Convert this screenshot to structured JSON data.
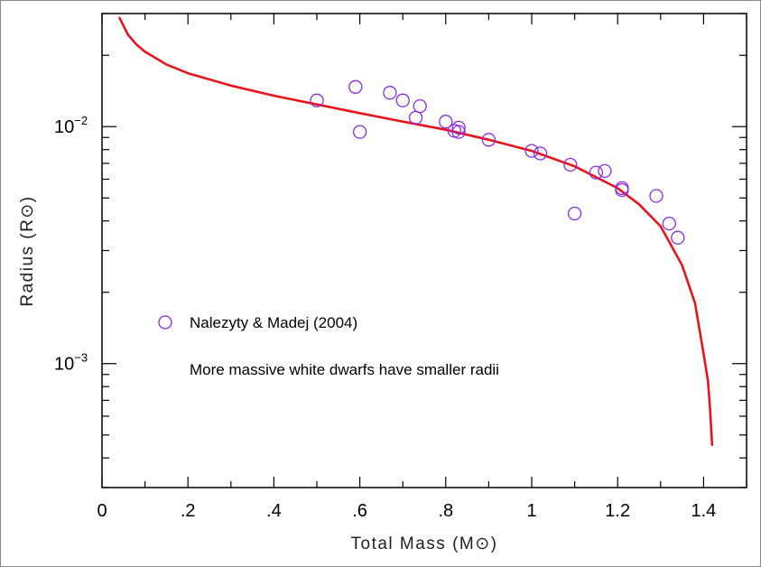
{
  "chart_data": {
    "type": "scatter",
    "xlabel": "Total Mass (M⊙)",
    "ylabel": "Radius (R⊙)",
    "xlim": [
      0,
      1.5
    ],
    "ylim": [
      0.0003,
      0.03
    ],
    "y_scale": "log",
    "x_ticks": [
      {
        "value": 0,
        "label": "0"
      },
      {
        "value": 0.2,
        "label": ".2"
      },
      {
        "value": 0.4,
        "label": ".4"
      },
      {
        "value": 0.6,
        "label": ".6"
      },
      {
        "value": 0.8,
        "label": ".8"
      },
      {
        "value": 1.0,
        "label": "1"
      },
      {
        "value": 1.2,
        "label": "1.2"
      },
      {
        "value": 1.4,
        "label": "1.4"
      }
    ],
    "y_ticks": [
      {
        "value": 0.01,
        "base": "10",
        "exp": "−2"
      },
      {
        "value": 0.001,
        "base": "10",
        "exp": "−3"
      }
    ],
    "grid": false,
    "legend_position": "center-left",
    "colors": {
      "points": "#8a2be2",
      "curve": "#e8141c"
    },
    "series": [
      {
        "name": "Nalezyty & Madej (2004)",
        "marker": "open-circle",
        "x": [
          0.5,
          0.59,
          0.6,
          0.67,
          0.7,
          0.73,
          0.74,
          0.8,
          0.82,
          0.83,
          0.83,
          0.9,
          1.0,
          1.02,
          1.09,
          1.1,
          1.15,
          1.17,
          1.21,
          1.21,
          1.29,
          1.32,
          1.34
        ],
        "y": [
          0.0129,
          0.0147,
          0.0095,
          0.0139,
          0.0129,
          0.0109,
          0.0122,
          0.0105,
          0.0096,
          0.0095,
          0.0099,
          0.0088,
          0.0079,
          0.0077,
          0.0069,
          0.0043,
          0.0064,
          0.0065,
          0.0054,
          0.0055,
          0.0051,
          0.0039,
          0.0034
        ]
      },
      {
        "name": "",
        "type": "line",
        "x": [
          0.04,
          0.06,
          0.08,
          0.1,
          0.15,
          0.2,
          0.3,
          0.4,
          0.5,
          0.6,
          0.7,
          0.8,
          0.9,
          1.0,
          1.1,
          1.2,
          1.25,
          1.3,
          1.35,
          1.38,
          1.4,
          1.41,
          1.415,
          1.42
        ],
        "y": [
          0.029,
          0.0245,
          0.0222,
          0.0207,
          0.0183,
          0.0168,
          0.0149,
          0.0135,
          0.0124,
          0.0114,
          0.0105,
          0.0097,
          0.0088,
          0.0079,
          0.0068,
          0.0055,
          0.0047,
          0.0038,
          0.0026,
          0.0018,
          0.0011,
          0.00085,
          0.00065,
          0.00045
        ]
      }
    ],
    "annotation": "More massive white dwarfs have smaller radii"
  }
}
